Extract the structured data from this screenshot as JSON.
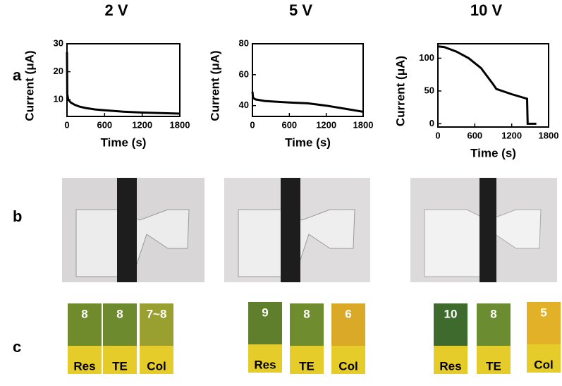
{
  "chart_data": [
    {
      "type": "line",
      "title": "2 V",
      "x_label": "Time (s)",
      "y_label": "Current (μA)",
      "x": [
        0,
        5,
        20,
        60,
        120,
        200,
        300,
        450,
        600,
        900,
        1200,
        1500,
        1800
      ],
      "values": [
        27,
        12,
        10,
        9,
        8.2,
        7.5,
        7,
        6.5,
        6.2,
        5.7,
        5.4,
        5.2,
        5
      ],
      "color": "#000000",
      "xlim": [
        0,
        1800
      ],
      "xticks": [
        0,
        600,
        1200,
        1800
      ],
      "ylim": [
        4,
        30
      ],
      "yticks": [
        10,
        20,
        30
      ]
    },
    {
      "type": "line",
      "title": "5 V",
      "x_label": "Time (s)",
      "y_label": "Current (μA)",
      "x": [
        0,
        10,
        50,
        200,
        600,
        900,
        1200,
        1500,
        1800
      ],
      "values": [
        49,
        45,
        44,
        43,
        42,
        41.5,
        40,
        38,
        36
      ],
      "color": "#000000",
      "xlim": [
        0,
        1800
      ],
      "xticks": [
        0,
        600,
        1200,
        1800
      ],
      "ylim": [
        33,
        80
      ],
      "yticks": [
        40,
        60,
        80
      ]
    },
    {
      "type": "line",
      "title": "10 V",
      "x_label": "Time (s)",
      "y_label": "Current (μA)",
      "x": [
        0,
        100,
        300,
        500,
        700,
        900,
        950,
        1200,
        1450,
        1460,
        1600
      ],
      "values": [
        118,
        117,
        110,
        100,
        85,
        60,
        53,
        45,
        38,
        0,
        0
      ],
      "color": "#000000",
      "xlim": [
        0,
        1800
      ],
      "xticks": [
        0,
        600,
        1200,
        1800
      ],
      "ylim": [
        -5,
        122
      ],
      "yticks": [
        0,
        50,
        100
      ]
    }
  ],
  "panel_labels": [
    "a",
    "b",
    "c"
  ],
  "strip_names": [
    "Res",
    "TE",
    "Col"
  ],
  "strips": [
    [
      "8",
      "8",
      "7~8"
    ],
    [
      "9",
      "8",
      "6"
    ],
    [
      "10",
      "8",
      "5"
    ]
  ]
}
